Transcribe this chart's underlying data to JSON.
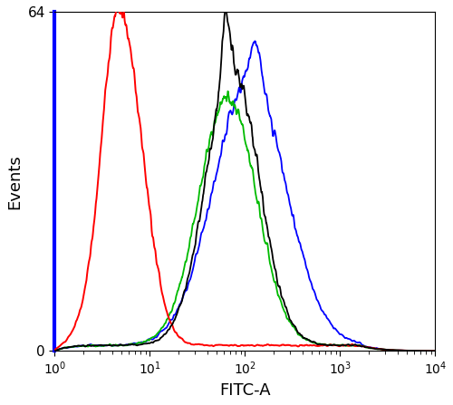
{
  "title": "",
  "xlabel": "FITC-A",
  "ylabel": "Events",
  "xlim": [
    1.0,
    10000.0
  ],
  "ylim": [
    0,
    64
  ],
  "yticks": [
    0,
    64
  ],
  "background_color": "#ffffff",
  "lines": {
    "red": {
      "color": "#ff0000",
      "peak_log10": 0.72,
      "peak_y": 57,
      "sigma": 0.22
    },
    "green": {
      "color": "#00bb00",
      "peak_log10": 1.82,
      "peak_y": 47,
      "sigma": 0.3
    },
    "black": {
      "color": "#000000",
      "peak_log10": 1.87,
      "peak_y": 52,
      "sigma": 0.28
    },
    "blue": {
      "color": "#0000ff",
      "peak_log10": 2.05,
      "peak_y": 50,
      "sigma": 0.38
    }
  },
  "left_bar_color": "#0000ff",
  "left_bar_width": 3,
  "baseline_level": 1.2,
  "noise_amplitude": 2.5
}
